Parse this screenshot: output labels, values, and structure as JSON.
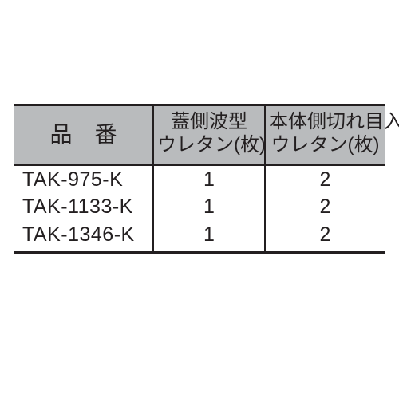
{
  "table": {
    "header": {
      "hinban": "品番",
      "futa_l1": "蓋側波型",
      "futa_l2": "ウレタン(枚)",
      "hontai_l1": "本体側切れ目入",
      "hontai_l2": "ウレタン(枚)"
    },
    "rows": [
      {
        "code": "TAK-975-K",
        "futa": "1",
        "hontai": "2"
      },
      {
        "code": "TAK-1133-K",
        "futa": "1",
        "hontai": "2"
      },
      {
        "code": "TAK-1346-K",
        "futa": "1",
        "hontai": "2"
      }
    ],
    "colors": {
      "header_bg": "#b9bbbd",
      "border": "#231f20",
      "text": "#231f20",
      "page_bg": "#ffffff"
    }
  }
}
